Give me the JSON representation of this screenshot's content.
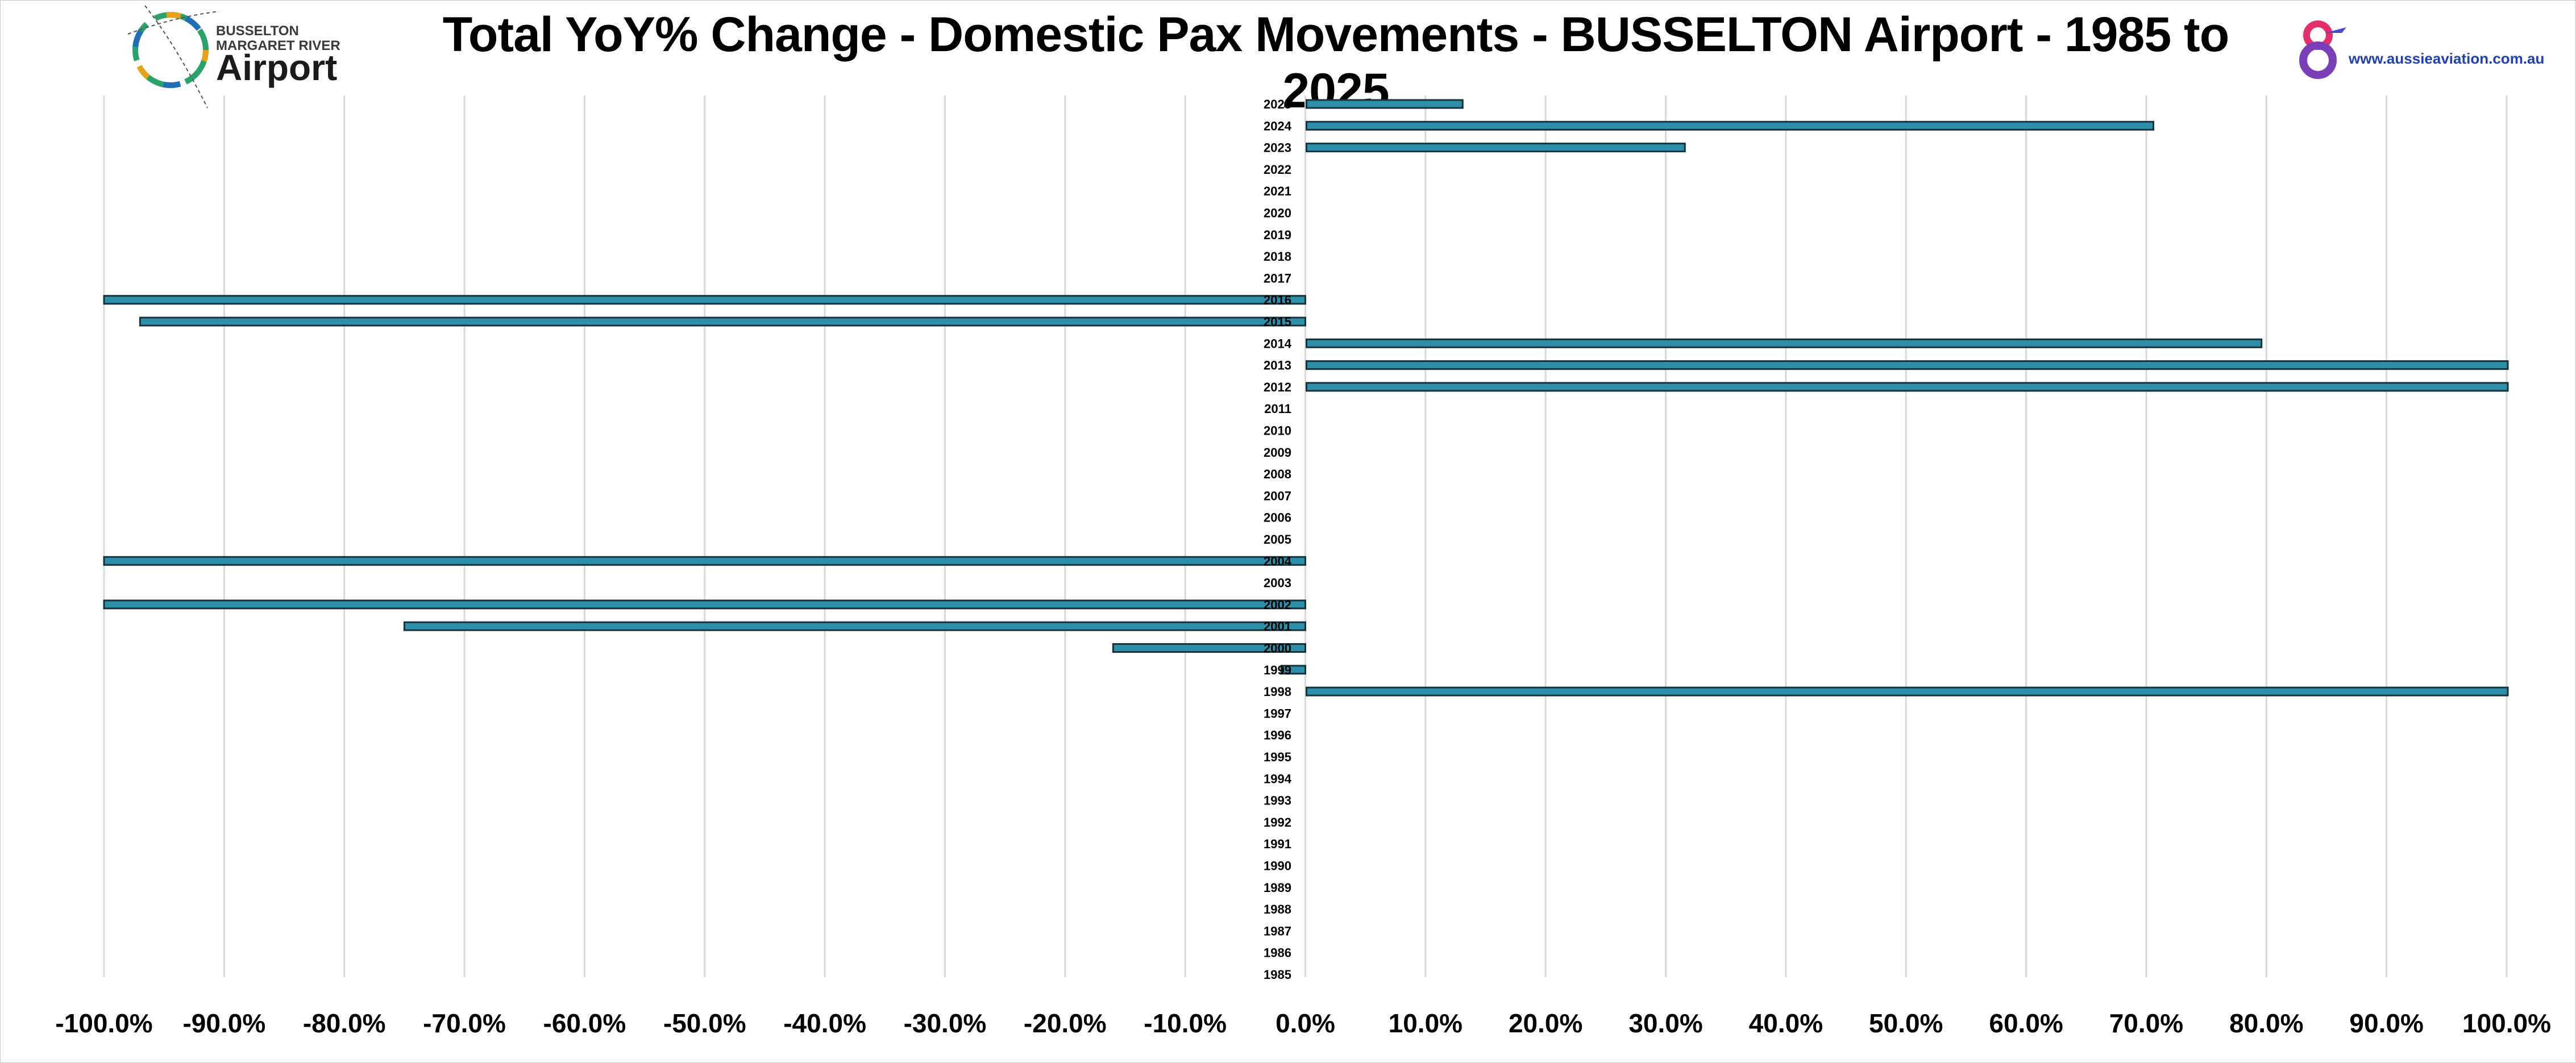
{
  "header": {
    "title": "Total YoY% Change - Domestic Pax Movements - BUSSELTON Airport - 1985 to 2025",
    "logo_left_line1": "BUSSELTON",
    "logo_left_line2": "MARGARET RIVER",
    "logo_left_line3": "Airport",
    "logo_right_url": "www.aussieaviation.com.au"
  },
  "colors": {
    "bar_fill": "#2e8fa8",
    "bar_edge": "#16333d",
    "grid": "#d9d9d9"
  },
  "chart_data": {
    "type": "bar",
    "orientation": "horizontal",
    "title": "Total YoY% Change - Domestic Pax Movements - BUSSELTON Airport - 1985 to 2025",
    "xlabel": "",
    "ylabel": "",
    "xlim": [
      -100,
      100
    ],
    "x_unit": "%",
    "grid": "vertical",
    "legend": "none",
    "x_ticks": [
      "-100.0%",
      "-90.0%",
      "-80.0%",
      "-70.0%",
      "-60.0%",
      "-50.0%",
      "-40.0%",
      "-30.0%",
      "-20.0%",
      "-10.0%",
      "0.0%",
      "10.0%",
      "20.0%",
      "30.0%",
      "40.0%",
      "50.0%",
      "60.0%",
      "70.0%",
      "80.0%",
      "90.0%",
      "100.0%"
    ],
    "categories": [
      "2025",
      "2024",
      "2023",
      "2022",
      "2021",
      "2020",
      "2019",
      "2018",
      "2017",
      "2016",
      "2015",
      "2014",
      "2013",
      "2012",
      "2011",
      "2010",
      "2009",
      "2008",
      "2007",
      "2006",
      "2005",
      "2004",
      "2003",
      "2002",
      "2001",
      "2000",
      "1999",
      "1998",
      "1997",
      "1996",
      "1995",
      "1994",
      "1993",
      "1992",
      "1991",
      "1990",
      "1989",
      "1988",
      "1987",
      "1986",
      "1985"
    ],
    "values": [
      13,
      70.5,
      31.5,
      0,
      0,
      0,
      0,
      0,
      0,
      -100,
      -97,
      79.5,
      100,
      100,
      0,
      0,
      0,
      0,
      0,
      0,
      0,
      -100,
      0,
      -100,
      -75,
      -16,
      -2,
      100,
      0,
      0,
      0,
      0,
      0,
      0,
      0,
      0,
      0,
      0,
      0,
      0,
      0
    ]
  }
}
